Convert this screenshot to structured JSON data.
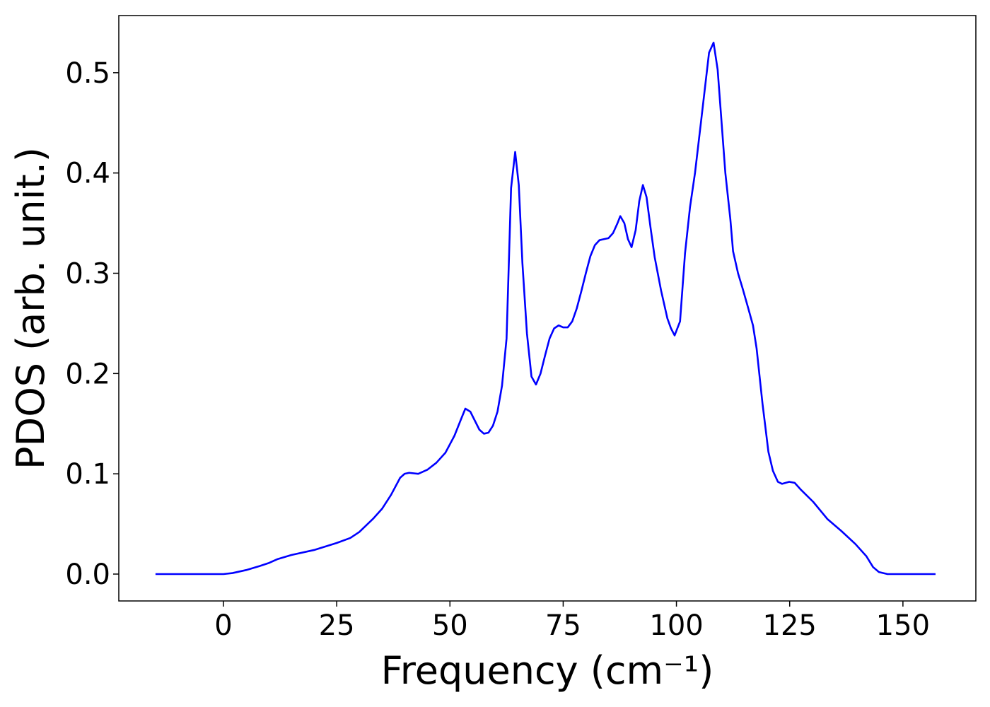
{
  "chart_data": {
    "type": "line",
    "xlabel": "Frequency (cm⁻¹)",
    "ylabel": "PDOS (arb. unit.)",
    "xlim": [
      -23.1,
      166.1
    ],
    "ylim": [
      -0.0268,
      0.557
    ],
    "xticks": [
      0,
      25,
      50,
      75,
      100,
      125,
      150
    ],
    "yticks": [
      {
        "value": 0,
        "label": "0.0"
      },
      0.1,
      0.2,
      0.3,
      0.4,
      0.5
    ],
    "grid": false,
    "series": [
      {
        "name": "PDOS",
        "color": "#0000ff",
        "x": [
          -15,
          0,
          2,
          5,
          8,
          10,
          12,
          15,
          20,
          25,
          28,
          30,
          33,
          35,
          37,
          39,
          40,
          41,
          43,
          45,
          47,
          49,
          51,
          52.5,
          53.4,
          54.5,
          55.5,
          56.5,
          57.5,
          58.5,
          59.5,
          60.5,
          61.5,
          62.5,
          63.5,
          64.4,
          65.2,
          66,
          67,
          68,
          69,
          70,
          71,
          72,
          73,
          74,
          75,
          76,
          77,
          78,
          79,
          80,
          81,
          82,
          83,
          84,
          85,
          86,
          87,
          87.6,
          88.5,
          89.3,
          90.1,
          91,
          91.8,
          92.6,
          93.4,
          94.3,
          95.2,
          96.6,
          98,
          98.8,
          99.6,
          100.8,
          101.9,
          103,
          104.1,
          105.4,
          107.2,
          108.2,
          109.1,
          110.8,
          111.9,
          112.5,
          113.6,
          114.6,
          115.8,
          116.9,
          117.7,
          119,
          119.6,
          120.3,
          121.3,
          122.4,
          123.3,
          124.9,
          126.1,
          127.5,
          130.2,
          133.3,
          136.4,
          139.5,
          141.9,
          143.4,
          144.7,
          146.6,
          157.2
        ],
        "values": [
          0,
          0,
          0.001,
          0.004,
          0.008,
          0.011,
          0.015,
          0.019,
          0.024,
          0.031,
          0.036,
          0.042,
          0.055,
          0.065,
          0.079,
          0.096,
          0.1,
          0.101,
          0.1,
          0.104,
          0.111,
          0.121,
          0.138,
          0.155,
          0.165,
          0.162,
          0.153,
          0.144,
          0.14,
          0.141,
          0.148,
          0.162,
          0.188,
          0.235,
          0.385,
          0.421,
          0.388,
          0.31,
          0.24,
          0.197,
          0.189,
          0.2,
          0.218,
          0.235,
          0.245,
          0.248,
          0.246,
          0.246,
          0.252,
          0.265,
          0.282,
          0.3,
          0.317,
          0.328,
          0.333,
          0.334,
          0.335,
          0.34,
          0.35,
          0.357,
          0.35,
          0.334,
          0.326,
          0.343,
          0.372,
          0.388,
          0.376,
          0.345,
          0.316,
          0.283,
          0.255,
          0.245,
          0.238,
          0.252,
          0.32,
          0.366,
          0.4,
          0.45,
          0.52,
          0.53,
          0.503,
          0.4,
          0.354,
          0.322,
          0.3,
          0.285,
          0.266,
          0.248,
          0.225,
          0.17,
          0.148,
          0.122,
          0.103,
          0.092,
          0.09,
          0.092,
          0.091,
          0.084,
          0.072,
          0.055,
          0.043,
          0.03,
          0.018,
          0.007,
          0.002,
          0,
          0
        ]
      }
    ]
  }
}
